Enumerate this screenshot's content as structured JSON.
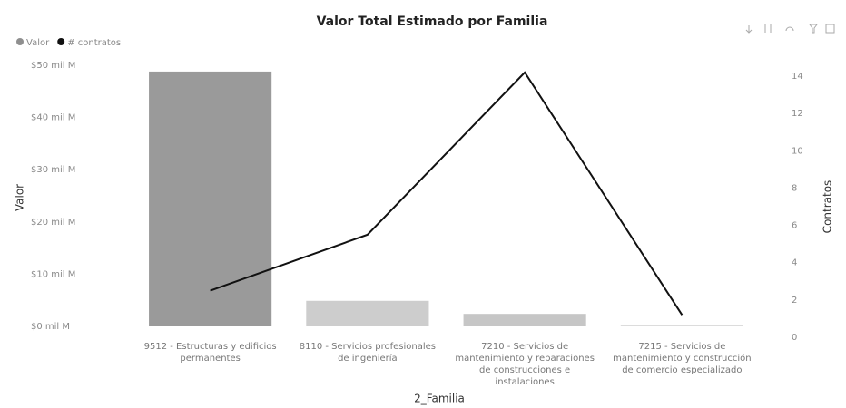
{
  "chart_data": {
    "type": "combo",
    "title": "Valor Total Estimado por Familia",
    "x_label": "2_Familia",
    "y_label": "Valor",
    "y2_label": "Contratos",
    "categories": [
      "9512 - Estructuras y edificios permanentes",
      "8110 - Servicios profesionales de ingeniería",
      "7210 - Servicios de mantenimiento y reparaciones de construcciones e instalaciones",
      "7215 - Servicios de mantenimiento y construcción de comercio especializado"
    ],
    "series": [
      {
        "name": "Valor",
        "color": "#8f8f8f",
        "colors": [
          "#9a9a9a",
          "#cdcdcd",
          "#c6c6c6",
          "#dcdcdc"
        ],
        "values": [
          48.8,
          4.9,
          2.4,
          0.2
        ]
      },
      {
        "name": "# contratos",
        "color": "#111111",
        "axis": "y2",
        "values": [
          2.5,
          5.5,
          14.2,
          1.2
        ]
      }
    ],
    "ylim": [
      0,
      50
    ],
    "yticks": [
      {
        "value": 0,
        "label": "$0 mil M"
      },
      {
        "value": 10,
        "label": "$10 mil M"
      },
      {
        "value": 20,
        "label": "$20 mil M"
      },
      {
        "value": 30,
        "label": "$30 mil M"
      },
      {
        "value": 40,
        "label": "$40 mil M"
      },
      {
        "value": 50,
        "label": "$50 mil M"
      }
    ],
    "y2lim": [
      0,
      14
    ],
    "y2ticks": [
      0,
      2,
      4,
      6,
      8,
      10,
      12,
      14
    ],
    "legend": "top-left"
  }
}
